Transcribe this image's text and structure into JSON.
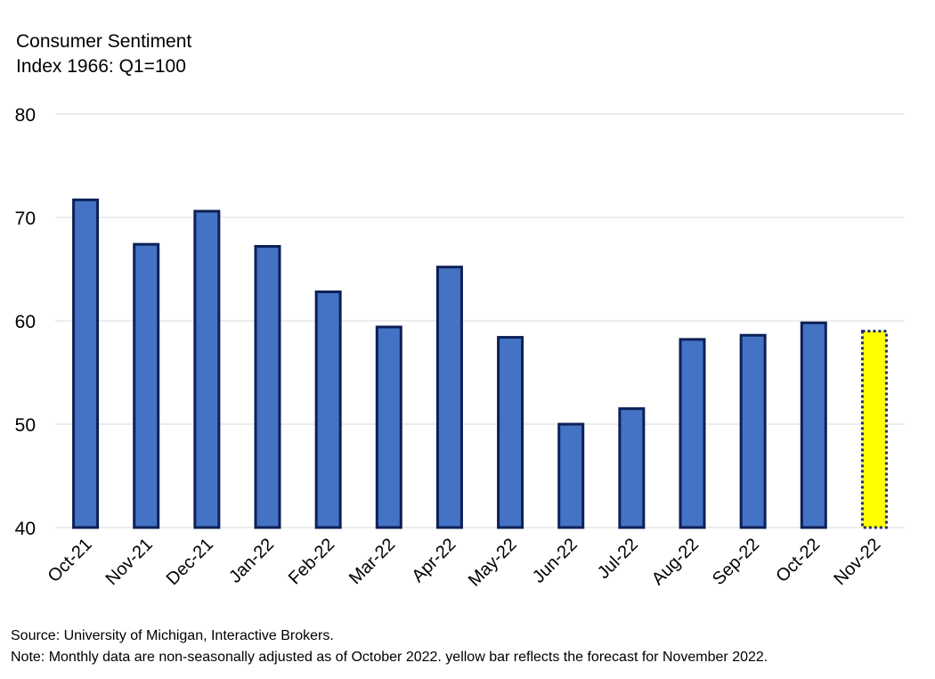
{
  "chart_data": {
    "type": "bar",
    "title": "Consumer Sentiment",
    "subtitle": "Index 1966: Q1=100",
    "categories": [
      "Oct-21",
      "Nov-21",
      "Dec-21",
      "Jan-22",
      "Feb-22",
      "Mar-22",
      "Apr-22",
      "May-22",
      "Jun-22",
      "Jul-22",
      "Aug-22",
      "Sep-22",
      "Oct-22",
      "Nov-22"
    ],
    "values": [
      71.7,
      67.4,
      70.6,
      67.2,
      62.8,
      59.4,
      65.2,
      58.4,
      50.0,
      51.5,
      58.2,
      58.6,
      59.8,
      59.0
    ],
    "highlight_index": 13,
    "ylim": [
      40,
      80
    ],
    "yticks": [
      40,
      50,
      60,
      70,
      80
    ],
    "xlabel": "",
    "ylabel": "",
    "grid": true,
    "colors": {
      "bar_fill": "#4472c4",
      "bar_edge": "#0d2057",
      "forecast_fill": "#ffff00",
      "forecast_edge": "#1f2f70",
      "grid": "#d9d9d9"
    }
  },
  "footnotes": {
    "source": "Source: University of Michigan, Interactive Brokers.",
    "note": "Note: Monthly data are non-seasonally adjusted as of October 2022. yellow bar reflects the forecast for November 2022."
  }
}
